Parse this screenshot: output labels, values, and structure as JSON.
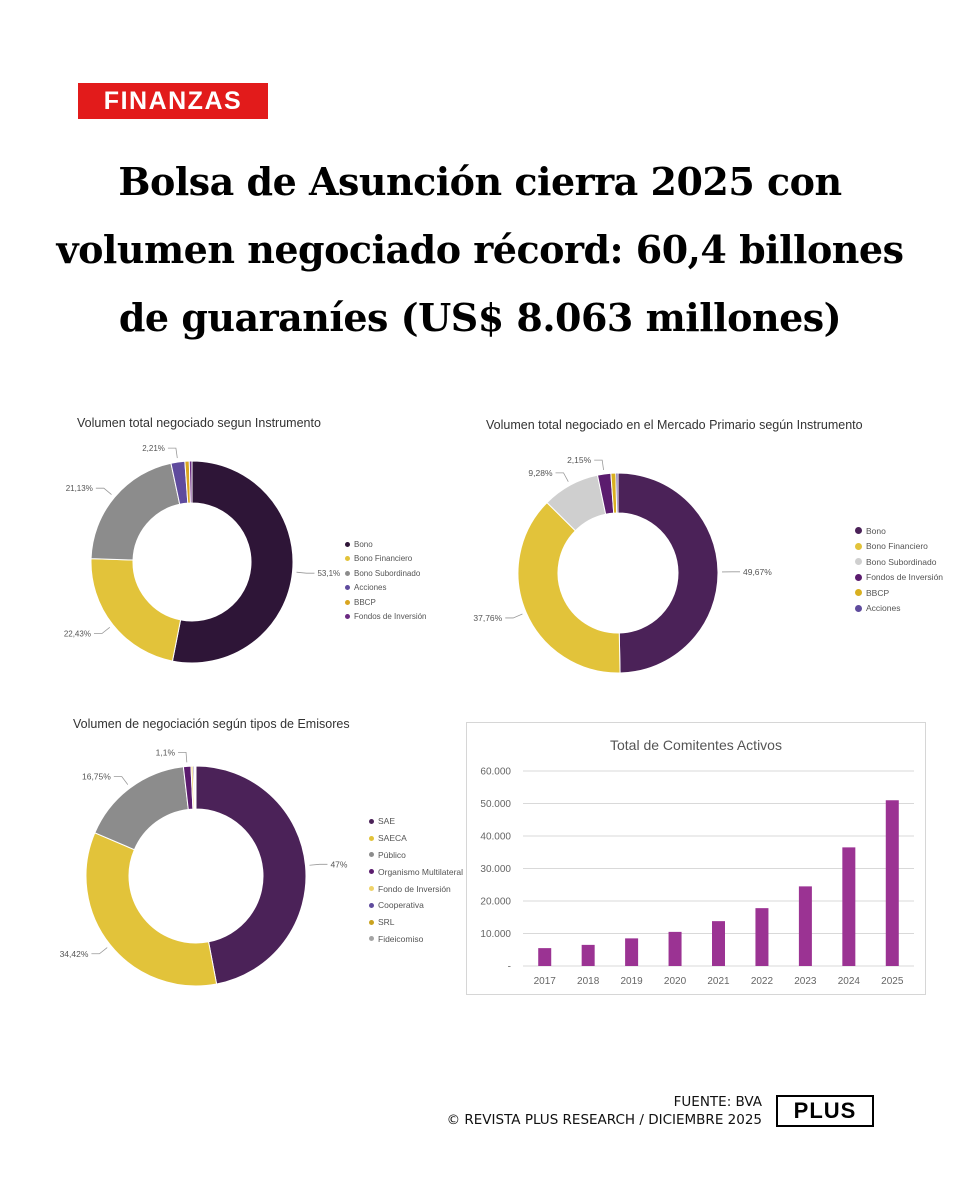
{
  "header": {
    "section_badge": "FINANZAS",
    "headline": "Bolsa de Asunción cierra 2025 con volumen negociado récord: 60,4 billones de guaraníes (US$ 8.063 millones)"
  },
  "chart_data": [
    {
      "type": "pie",
      "donut": true,
      "title": "Volumen total negociado segun Instrumento",
      "categories": [
        "Bono",
        "Bono Financiero",
        "Bono Subordinado",
        "Acciones",
        "BBCP",
        "Fondos de Inversión"
      ],
      "values": [
        53.1,
        22.43,
        21.13,
        2.21,
        0.7,
        0.43
      ],
      "data_labels": [
        "53,1%",
        "22,43%",
        "21,13%",
        "2,21%",
        "",
        ""
      ],
      "colors": [
        "#2e1537",
        "#e2c33a",
        "#8c8c8c",
        "#5f4b9d",
        "#d9a520",
        "#6b2a82"
      ],
      "legend_position": "right"
    },
    {
      "type": "pie",
      "donut": true,
      "title": "Volumen total negociado en el Mercado Primario según Instrumento",
      "categories": [
        "Bono",
        "Bono Financiero",
        "Bono Subordinado",
        "Fondos de Inversión",
        "BBCP",
        "Acciones"
      ],
      "values": [
        49.67,
        37.76,
        9.28,
        2.15,
        0.8,
        0.34
      ],
      "data_labels": [
        "49,67%",
        "37,76%",
        "9,28%",
        "2,15%",
        "",
        ""
      ],
      "colors": [
        "#4b2258",
        "#e2c33a",
        "#cfcfcf",
        "#5b1c6e",
        "#d9b020",
        "#5f4b9d"
      ],
      "legend_position": "right"
    },
    {
      "type": "pie",
      "donut": true,
      "title": "Volumen de negociación según tipos de Emisores",
      "categories": [
        "SAE",
        "SAECA",
        "Público",
        "Organismo Multilateral",
        "Fondo de Inversión",
        "Cooperativa",
        "SRL",
        "Fideicomiso"
      ],
      "values": [
        47,
        34.42,
        16.75,
        1.1,
        0.3,
        0.2,
        0.13,
        0.1
      ],
      "data_labels": [
        "47%",
        "34,42%",
        "16,75%",
        "1,1%",
        "",
        "",
        "",
        ""
      ],
      "colors": [
        "#4b2258",
        "#e2c33a",
        "#8c8c8c",
        "#5b1c6e",
        "#efd36a",
        "#5f4b9d",
        "#c9a21e",
        "#a4a4a4"
      ],
      "legend_position": "right"
    },
    {
      "type": "bar",
      "title": "Total de Comitentes Activos",
      "categories": [
        "2017",
        "2018",
        "2019",
        "2020",
        "2021",
        "2022",
        "2023",
        "2024",
        "2025"
      ],
      "values": [
        5500,
        6500,
        8500,
        10500,
        13800,
        17800,
        24500,
        36500,
        51000
      ],
      "ylim": [
        0,
        60000
      ],
      "yticks": [
        0,
        10000,
        20000,
        30000,
        40000,
        50000,
        60000
      ],
      "ytick_labels": [
        "-",
        "10.000",
        "20.000",
        "30.000",
        "40.000",
        "50.000",
        "60.000"
      ],
      "grid": true,
      "color": "#9b3393"
    }
  ],
  "footer": {
    "source": "FUENTE: BVA",
    "copyright": "© REVISTA PLUS RESEARCH / DICIEMBRE 2025",
    "logo": "PLUS"
  }
}
